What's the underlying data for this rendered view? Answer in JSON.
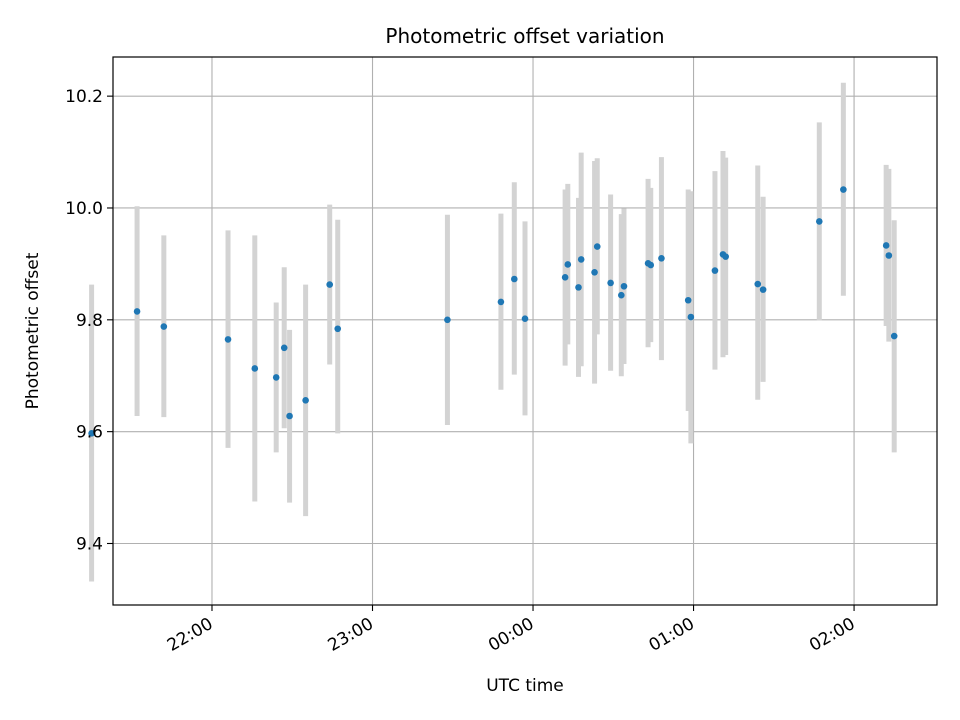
{
  "chart_data": {
    "type": "scatter",
    "title": "Photometric offset variation",
    "xlabel": "UTC time",
    "ylabel": "Photometric offset",
    "x_axis": "time",
    "x_ticks": [
      "22:00",
      "23:00",
      "00:00",
      "01:00",
      "02:00"
    ],
    "y_ticks": [
      "9.4",
      "9.6",
      "9.8",
      "10.0",
      "10.2"
    ],
    "xlim": [
      "21:23",
      "02:31"
    ],
    "ylim": [
      9.29,
      10.27
    ],
    "grid": true,
    "marker_color": "#1f77b4",
    "errorbar_color": "#d3d3d3",
    "series": [
      {
        "points": [
          {
            "t": "21:15",
            "y": 9.597,
            "lo": 9.332,
            "hi": 9.863
          },
          {
            "t": "21:32",
            "y": 9.815,
            "lo": 9.628,
            "hi": 10.003
          },
          {
            "t": "21:42",
            "y": 9.788,
            "lo": 9.626,
            "hi": 9.951
          },
          {
            "t": "22:06",
            "y": 9.765,
            "lo": 9.571,
            "hi": 9.96
          },
          {
            "t": "22:16",
            "y": 9.713,
            "lo": 9.475,
            "hi": 9.951
          },
          {
            "t": "22:24",
            "y": 9.697,
            "lo": 9.563,
            "hi": 9.831
          },
          {
            "t": "22:27",
            "y": 9.75,
            "lo": 9.606,
            "hi": 9.894
          },
          {
            "t": "22:29",
            "y": 9.628,
            "lo": 9.473,
            "hi": 9.782
          },
          {
            "t": "22:35",
            "y": 9.656,
            "lo": 9.449,
            "hi": 9.863
          },
          {
            "t": "22:44",
            "y": 9.863,
            "lo": 9.72,
            "hi": 10.006
          },
          {
            "t": "22:47",
            "y": 9.784,
            "lo": 9.597,
            "hi": 9.979
          },
          {
            "t": "23:28",
            "y": 9.8,
            "lo": 9.612,
            "hi": 9.988
          },
          {
            "t": "23:48",
            "y": 9.832,
            "lo": 9.675,
            "hi": 9.99
          },
          {
            "t": "23:53",
            "y": 9.873,
            "lo": 9.702,
            "hi": 10.046
          },
          {
            "t": "23:57",
            "y": 9.802,
            "lo": 9.629,
            "hi": 9.976
          },
          {
            "t": "00:12",
            "y": 9.876,
            "lo": 9.718,
            "hi": 10.033
          },
          {
            "t": "00:13",
            "y": 9.899,
            "lo": 9.756,
            "hi": 10.043
          },
          {
            "t": "00:17",
            "y": 9.858,
            "lo": 9.698,
            "hi": 10.018
          },
          {
            "t": "00:18",
            "y": 9.908,
            "lo": 9.717,
            "hi": 10.099
          },
          {
            "t": "00:23",
            "y": 9.885,
            "lo": 9.686,
            "hi": 10.084
          },
          {
            "t": "00:24",
            "y": 9.931,
            "lo": 9.774,
            "hi": 10.089
          },
          {
            "t": "00:29",
            "y": 9.866,
            "lo": 9.709,
            "hi": 10.024
          },
          {
            "t": "00:33",
            "y": 9.844,
            "lo": 9.699,
            "hi": 9.989
          },
          {
            "t": "00:34",
            "y": 9.86,
            "lo": 9.721,
            "hi": 9.999
          },
          {
            "t": "00:43",
            "y": 9.901,
            "lo": 9.751,
            "hi": 10.052
          },
          {
            "t": "00:44",
            "y": 9.898,
            "lo": 9.76,
            "hi": 10.036
          },
          {
            "t": "00:48",
            "y": 9.91,
            "lo": 9.728,
            "hi": 10.091
          },
          {
            "t": "00:58",
            "y": 9.835,
            "lo": 9.637,
            "hi": 10.033
          },
          {
            "t": "00:59",
            "y": 9.805,
            "lo": 9.579,
            "hi": 10.03
          },
          {
            "t": "01:08",
            "y": 9.888,
            "lo": 9.711,
            "hi": 10.066
          },
          {
            "t": "01:11",
            "y": 9.917,
            "lo": 9.733,
            "hi": 10.102
          },
          {
            "t": "01:12",
            "y": 9.913,
            "lo": 9.737,
            "hi": 10.09
          },
          {
            "t": "01:24",
            "y": 9.864,
            "lo": 9.657,
            "hi": 10.076
          },
          {
            "t": "01:26",
            "y": 9.854,
            "lo": 9.689,
            "hi": 10.02
          },
          {
            "t": "01:47",
            "y": 9.976,
            "lo": 9.799,
            "hi": 10.153
          },
          {
            "t": "01:56",
            "y": 10.033,
            "lo": 9.843,
            "hi": 10.224
          },
          {
            "t": "02:12",
            "y": 9.933,
            "lo": 9.789,
            "hi": 10.077
          },
          {
            "t": "02:13",
            "y": 9.915,
            "lo": 9.761,
            "hi": 10.07
          },
          {
            "t": "02:15",
            "y": 9.771,
            "lo": 9.563,
            "hi": 9.978
          }
        ]
      }
    ]
  }
}
